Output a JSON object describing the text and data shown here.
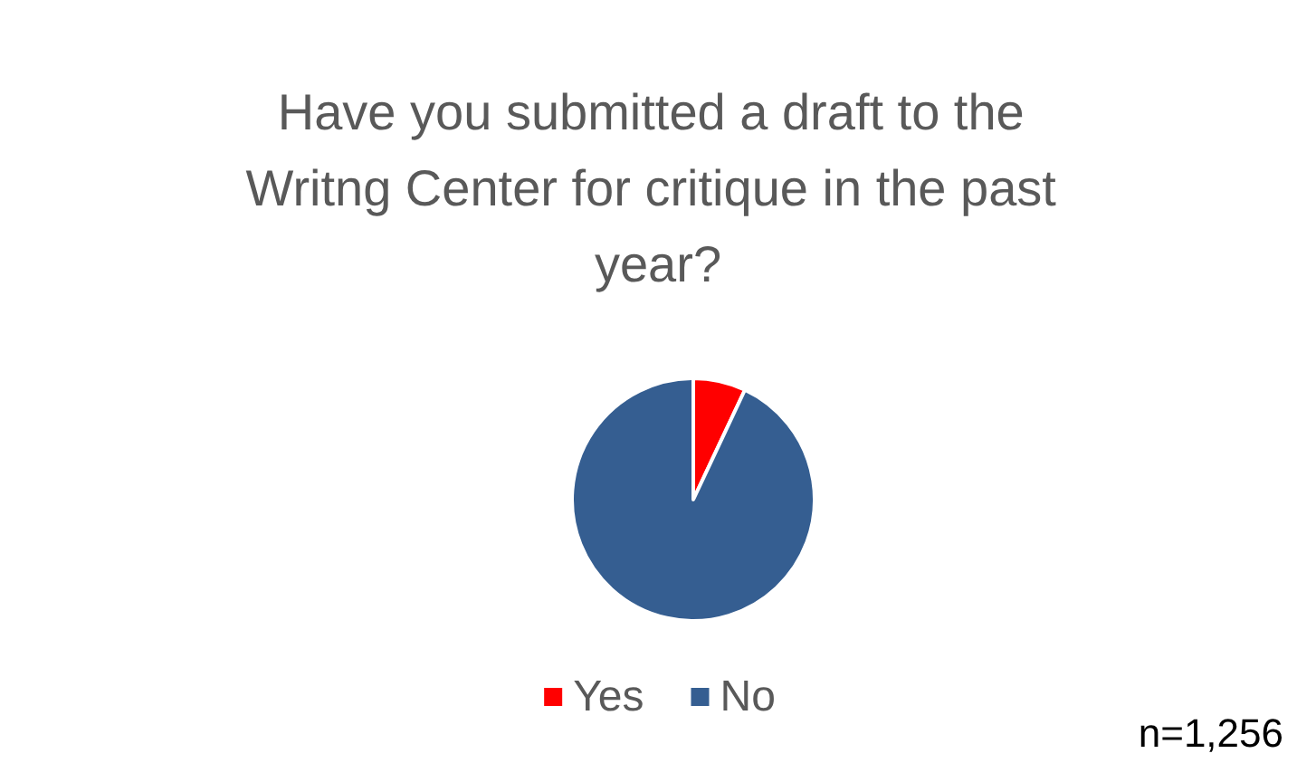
{
  "chart_data": {
    "type": "pie",
    "title": "Have you submitted a draft to the Writng Center for critique in the past year?",
    "categories": [
      "Yes",
      "No"
    ],
    "values": [
      7,
      93
    ],
    "colors": [
      "#ff0000",
      "#355e91"
    ],
    "legend": "bottom",
    "annotations": [
      "n=1,256"
    ]
  }
}
